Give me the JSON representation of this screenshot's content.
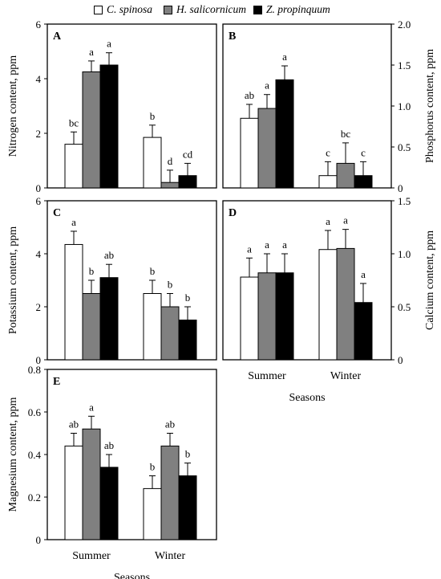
{
  "legend": {
    "items": [
      {
        "label": "C. spinosa",
        "color": "#ffffff"
      },
      {
        "label": "H. salicornicum",
        "color": "#808080"
      },
      {
        "label": "Z. propinquum",
        "color": "#000000"
      }
    ]
  },
  "chart_data": [
    {
      "panel": "A",
      "type": "bar",
      "categories": [
        "Summer",
        "Winter"
      ],
      "ylabel": "Nitrogen content, ppm",
      "ylim": [
        0,
        6
      ],
      "yticks": [
        0,
        2,
        4,
        6
      ],
      "axis_side": "left",
      "xlabel": "",
      "series": [
        {
          "name": "C. spinosa",
          "values": [
            1.6,
            1.85
          ],
          "errors": [
            0.45,
            0.45
          ],
          "letters": [
            "bc",
            "b"
          ]
        },
        {
          "name": "H. salicornicum",
          "values": [
            4.25,
            0.2
          ],
          "errors": [
            0.4,
            0.45
          ],
          "letters": [
            "a",
            "d"
          ]
        },
        {
          "name": "Z. propinquum",
          "values": [
            4.5,
            0.45
          ],
          "errors": [
            0.45,
            0.45
          ],
          "letters": [
            "a",
            "cd"
          ]
        }
      ]
    },
    {
      "panel": "B",
      "type": "bar",
      "categories": [
        "Summer",
        "Winter"
      ],
      "ylabel": "Phosphorus content, ppm",
      "ylim": [
        0,
        2.0
      ],
      "yticks": [
        0,
        0.5,
        1.0,
        1.5,
        2.0
      ],
      "ytick_labels": [
        "0",
        "0.5",
        "1.0",
        "1.5",
        "2.0"
      ],
      "axis_side": "right",
      "xlabel": "",
      "series": [
        {
          "name": "C. spinosa",
          "values": [
            0.85,
            0.15
          ],
          "errors": [
            0.17,
            0.17
          ],
          "letters": [
            "ab",
            "c"
          ]
        },
        {
          "name": "H. salicornicum",
          "values": [
            0.97,
            0.3
          ],
          "errors": [
            0.17,
            0.25
          ],
          "letters": [
            "a",
            "bc"
          ]
        },
        {
          "name": "Z. propinquum",
          "values": [
            1.32,
            0.15
          ],
          "errors": [
            0.17,
            0.17
          ],
          "letters": [
            "a",
            "c"
          ]
        }
      ]
    },
    {
      "panel": "C",
      "type": "bar",
      "categories": [
        "Summer",
        "Winter"
      ],
      "ylabel": "Potassium content, ppm",
      "ylim": [
        0,
        6
      ],
      "yticks": [
        0,
        2,
        4,
        6
      ],
      "axis_side": "left",
      "xlabel": "",
      "series": [
        {
          "name": "C. spinosa",
          "values": [
            4.35,
            2.5
          ],
          "errors": [
            0.5,
            0.5
          ],
          "letters": [
            "a",
            "b"
          ]
        },
        {
          "name": "H. salicornicum",
          "values": [
            2.5,
            2.0
          ],
          "errors": [
            0.5,
            0.5
          ],
          "letters": [
            "b",
            "b"
          ]
        },
        {
          "name": "Z. propinquum",
          "values": [
            3.1,
            1.5
          ],
          "errors": [
            0.5,
            0.5
          ],
          "letters": [
            "ab",
            "b"
          ]
        }
      ]
    },
    {
      "panel": "D",
      "type": "bar",
      "categories": [
        "Summer",
        "Winter"
      ],
      "ylabel": "Calcium content, ppm",
      "ylim": [
        0,
        1.5
      ],
      "yticks": [
        0,
        0.5,
        1.0,
        1.5
      ],
      "ytick_labels": [
        "0",
        "0.5",
        "1.0",
        "1.5"
      ],
      "axis_side": "right",
      "xlabel": "Seasons",
      "series": [
        {
          "name": "C. spinosa",
          "values": [
            0.78,
            1.04
          ],
          "errors": [
            0.18,
            0.18
          ],
          "letters": [
            "a",
            "a"
          ]
        },
        {
          "name": "H. salicornicum",
          "values": [
            0.82,
            1.05
          ],
          "errors": [
            0.18,
            0.18
          ],
          "letters": [
            "a",
            "a"
          ]
        },
        {
          "name": "Z. propinquum",
          "values": [
            0.82,
            0.54
          ],
          "errors": [
            0.18,
            0.18
          ],
          "letters": [
            "a",
            "a"
          ]
        }
      ]
    },
    {
      "panel": "E",
      "type": "bar",
      "categories": [
        "Summer",
        "Winter"
      ],
      "ylabel": "Magnesium content, ppm",
      "ylim": [
        0,
        0.8
      ],
      "yticks": [
        0,
        0.2,
        0.4,
        0.6,
        0.8
      ],
      "ytick_labels": [
        "0",
        "0.2",
        "0.4",
        "0.6",
        "0.8"
      ],
      "axis_side": "left",
      "xlabel": "Seasons",
      "series": [
        {
          "name": "C. spinosa",
          "values": [
            0.44,
            0.24
          ],
          "errors": [
            0.06,
            0.06
          ],
          "letters": [
            "ab",
            "b"
          ]
        },
        {
          "name": "H. salicornicum",
          "values": [
            0.52,
            0.44
          ],
          "errors": [
            0.06,
            0.06
          ],
          "letters": [
            "a",
            "ab"
          ]
        },
        {
          "name": "Z. propinquum",
          "values": [
            0.34,
            0.3
          ],
          "errors": [
            0.06,
            0.06
          ],
          "letters": [
            "ab",
            "b"
          ]
        }
      ]
    }
  ]
}
